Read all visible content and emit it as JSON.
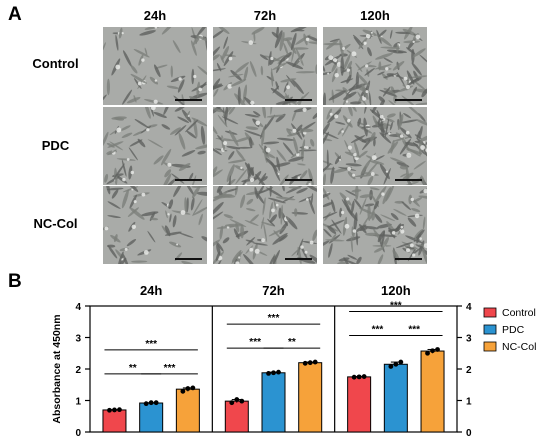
{
  "figure": {
    "panel_a_label": "A",
    "panel_b_label": "B",
    "timepoints": [
      "24h",
      "72h",
      "120h"
    ],
    "groups": [
      "Control",
      "PDC",
      "NC-Col"
    ]
  },
  "chart_data": {
    "type": "bar",
    "panels": [
      "24h",
      "72h",
      "120h"
    ],
    "categories": [
      "Control",
      "PDC",
      "NC-Col"
    ],
    "series": [
      {
        "name": "Control",
        "color": "#f0474c",
        "values": [
          0.7,
          0.98,
          1.75
        ],
        "points": [
          [
            0.69,
            0.7,
            0.71
          ],
          [
            0.93,
            1.03,
            0.98
          ],
          [
            1.74,
            1.75,
            1.76
          ]
        ]
      },
      {
        "name": "PDC",
        "color": "#2b93d1",
        "values": [
          0.92,
          1.88,
          2.15
        ],
        "points": [
          [
            0.9,
            0.93,
            0.93
          ],
          [
            1.86,
            1.88,
            1.9
          ],
          [
            2.08,
            2.15,
            2.22
          ]
        ]
      },
      {
        "name": "NC-Col",
        "color": "#f6a23a",
        "values": [
          1.36,
          2.2,
          2.57
        ],
        "points": [
          [
            1.29,
            1.38,
            1.4
          ],
          [
            2.18,
            2.2,
            2.22
          ],
          [
            2.5,
            2.58,
            2.62
          ]
        ]
      }
    ],
    "ylabel": "Absorbance at 450nm",
    "ylim": [
      0,
      4
    ],
    "yticks": [
      "0",
      "1",
      "2",
      "3",
      "4"
    ],
    "legend_placement": "right",
    "significance": [
      [
        {
          "from": 0,
          "to": 2,
          "label": "***"
        },
        {
          "from": 0,
          "to": 1,
          "label": "**"
        },
        {
          "from": 1,
          "to": 2,
          "label": "***"
        }
      ],
      [
        {
          "from": 0,
          "to": 2,
          "label": "***"
        },
        {
          "from": 0,
          "to": 1,
          "label": "***"
        },
        {
          "from": 1,
          "to": 2,
          "label": "**"
        }
      ],
      [
        {
          "from": 0,
          "to": 2,
          "label": "***"
        },
        {
          "from": 0,
          "to": 1,
          "label": "***"
        },
        {
          "from": 1,
          "to": 2,
          "label": "***"
        }
      ]
    ]
  }
}
